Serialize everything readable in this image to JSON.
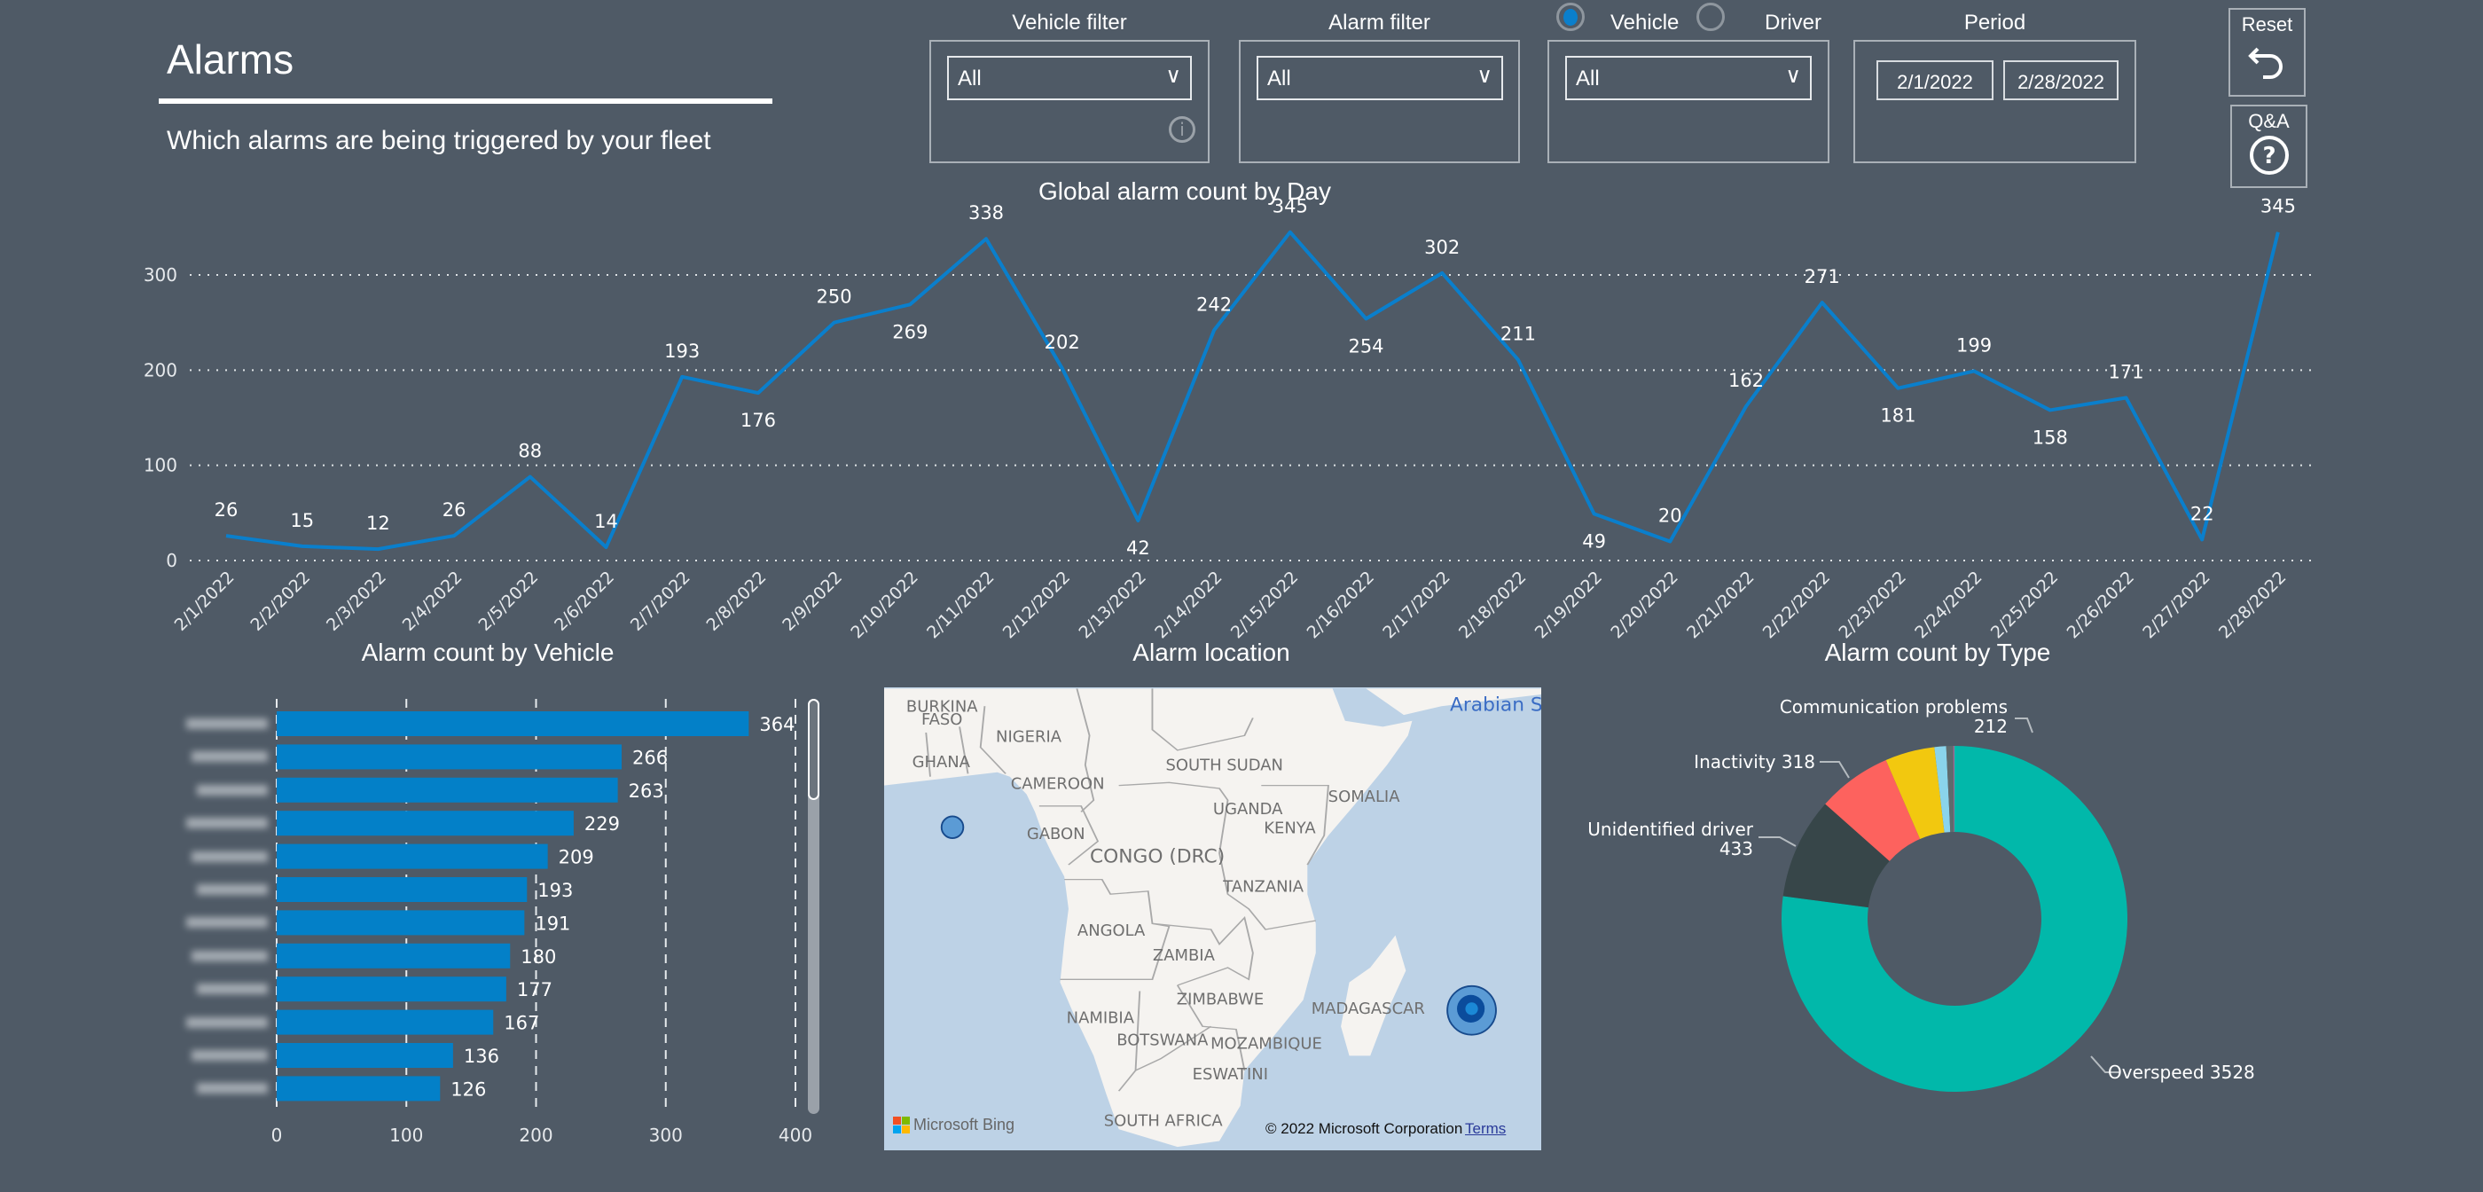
{
  "header": {
    "title": "Alarms",
    "subtitle": "Which alarms are being triggered by your fleet"
  },
  "filters": {
    "vehicle": {
      "label": "Vehicle filter",
      "value": "All"
    },
    "alarm": {
      "label": "Alarm filter",
      "value": "All"
    },
    "mode": {
      "options": [
        "Vehicle",
        "Driver"
      ],
      "selected": "Vehicle",
      "value": "All"
    },
    "period": {
      "label": "Period",
      "start": "2/1/2022",
      "end": "2/28/2022"
    }
  },
  "buttons": {
    "reset": "Reset",
    "qa": "Q&A"
  },
  "colors": {
    "line": "#0a7fcc",
    "bar": "#0380c8",
    "background": "#4f5a66"
  },
  "chart_data": [
    {
      "type": "line",
      "title": "Global alarm count by Day",
      "x": [
        "2/1/2022",
        "2/2/2022",
        "2/3/2022",
        "2/4/2022",
        "2/5/2022",
        "2/6/2022",
        "2/7/2022",
        "2/8/2022",
        "2/9/2022",
        "2/10/2022",
        "2/11/2022",
        "2/12/2022",
        "2/13/2022",
        "2/14/2022",
        "2/15/2022",
        "2/16/2022",
        "2/17/2022",
        "2/18/2022",
        "2/19/2022",
        "2/20/2022",
        "2/21/2022",
        "2/22/2022",
        "2/23/2022",
        "2/24/2022",
        "2/25/2022",
        "2/26/2022",
        "2/27/2022",
        "2/28/2022"
      ],
      "values": [
        26,
        15,
        12,
        26,
        88,
        14,
        193,
        176,
        250,
        269,
        338,
        202,
        42,
        242,
        345,
        254,
        302,
        211,
        49,
        20,
        162,
        271,
        181,
        199,
        158,
        171,
        22,
        345
      ],
      "yticks": [
        "0",
        "100",
        "200",
        "300"
      ],
      "ylim": [
        0,
        350
      ],
      "grid": true
    },
    {
      "type": "bar",
      "orientation": "horizontal",
      "title": "Alarm count by Vehicle",
      "values": [
        364,
        266,
        263,
        229,
        209,
        193,
        191,
        180,
        177,
        167,
        136,
        126
      ],
      "xticks": [
        "0",
        "100",
        "200",
        "300",
        "400"
      ],
      "xlim": [
        0,
        400
      ]
    },
    {
      "type": "pie",
      "title": "Alarm count by Type",
      "slices": [
        {
          "label": "Overspeed",
          "value": 3528,
          "color": "#01b8aa",
          "text": "Overspeed 3528"
        },
        {
          "label": "Unidentified driver",
          "value": 433,
          "color": "#374649",
          "text": "433"
        },
        {
          "label": "Inactivity",
          "value": 318,
          "color": "#fd625e",
          "text": "Inactivity 318"
        },
        {
          "label": "Communication problems",
          "value": 212,
          "color": "#f2c80f",
          "text": "212"
        },
        {
          "label": "",
          "value": 50,
          "color": "#8ad4eb",
          "text": ""
        },
        {
          "label": "",
          "value": 30,
          "color": "#5f6b6d",
          "text": ""
        },
        {
          "label": "",
          "value": 5,
          "color": "#a66999",
          "text": ""
        }
      ]
    }
  ],
  "map": {
    "title": "Alarm location",
    "labels": [
      "BURKINA",
      "FASO",
      "NIGERIA",
      "GHANA",
      "SOUTH SUDAN",
      "CAMEROON",
      "SOMALIA",
      "UGANDA",
      "KENYA",
      "GABON",
      "CONGO (DRC)",
      "TANZANIA",
      "ANGOLA",
      "ZAMBIA",
      "ZIMBABWE",
      "MADAGASCAR",
      "NAMIBIA",
      "BOTSWANA",
      "MOZAMBIQUE",
      "ESWATINI",
      "SOUTH AFRICA"
    ],
    "sea": "Arabian Sea",
    "provider": "Microsoft Bing",
    "copyright": "© 2022 Microsoft Corporation",
    "terms": "Terms"
  }
}
